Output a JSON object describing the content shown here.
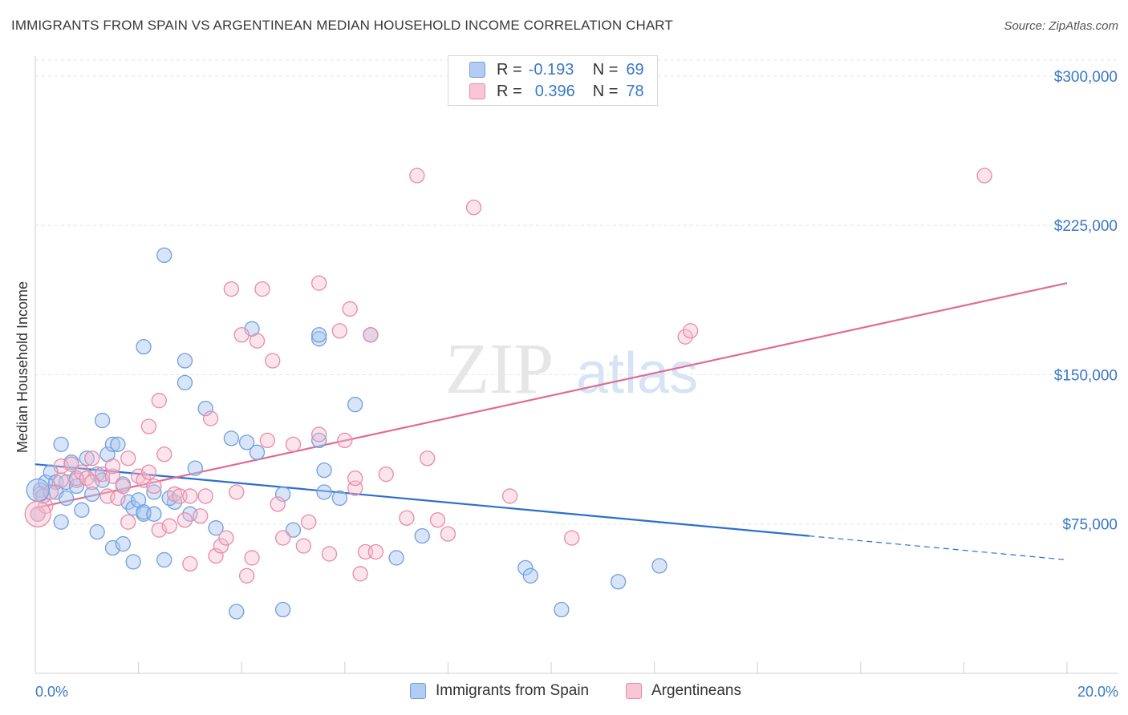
{
  "header": {
    "title": "IMMIGRANTS FROM SPAIN VS ARGENTINEAN MEDIAN HOUSEHOLD INCOME CORRELATION CHART",
    "source": "Source: ZipAtlas.com"
  },
  "watermark": {
    "zip": "ZIP",
    "atlas": "atlas"
  },
  "legend_top": {
    "rows": [
      {
        "r_label": "R =",
        "r_value": "-0.193",
        "n_label": "N =",
        "n_value": "69"
      },
      {
        "r_label": "R =",
        "r_value": "0.396",
        "n_label": "N =",
        "n_value": "78"
      }
    ]
  },
  "colors": {
    "blue": "#6f9fde",
    "blue_fill": "#a9c6f0",
    "blue_line": "#2a6fd0",
    "pink": "#e98aa8",
    "pink_fill": "#f6bccd",
    "pink_line": "#e06b96",
    "axis_label": "#3a78c9",
    "grid": "#e3e3e3"
  },
  "chart_data": {
    "type": "scatter",
    "title": "IMMIGRANTS FROM SPAIN VS ARGENTINEAN MEDIAN HOUSEHOLD INCOME CORRELATION CHART",
    "xlabel": "",
    "ylabel": "Median Household Income",
    "xlim": [
      0,
      20
    ],
    "ylim": [
      0,
      310000
    ],
    "x_tick_labels": [
      "0.0%",
      "20.0%"
    ],
    "y_ticks": [
      75000,
      150000,
      225000,
      300000
    ],
    "y_tick_labels": [
      "$75,000",
      "$150,000",
      "$225,000",
      "$300,000"
    ],
    "grid": true,
    "legend_position": "top-center",
    "series": [
      {
        "name": "Immigrants from Spain",
        "r": -0.193,
        "n": 69,
        "trend": {
          "x0": 0,
          "y0": 105000,
          "x1": 15.0,
          "y1": 69000,
          "dash_to_x": 20.0,
          "dash_to_y": 57000
        },
        "points": [
          [
            0.1,
            92000
          ],
          [
            0.2,
            96000
          ],
          [
            0.3,
            101000
          ],
          [
            0.4,
            96000
          ],
          [
            0.4,
            91000
          ],
          [
            0.5,
            115000
          ],
          [
            0.5,
            76000
          ],
          [
            0.6,
            88000
          ],
          [
            0.6,
            96000
          ],
          [
            0.7,
            106000
          ],
          [
            0.8,
            94000
          ],
          [
            0.8,
            98000
          ],
          [
            0.9,
            82000
          ],
          [
            1.0,
            108000
          ],
          [
            1.1,
            90000
          ],
          [
            1.2,
            71000
          ],
          [
            1.2,
            100000
          ],
          [
            1.3,
            127000
          ],
          [
            1.4,
            110000
          ],
          [
            1.5,
            115000
          ],
          [
            1.5,
            63000
          ],
          [
            1.6,
            115000
          ],
          [
            1.7,
            95000
          ],
          [
            1.7,
            65000
          ],
          [
            1.8,
            86000
          ],
          [
            1.9,
            83000
          ],
          [
            1.9,
            56000
          ],
          [
            2.0,
            87000
          ],
          [
            2.1,
            80000
          ],
          [
            2.1,
            81000
          ],
          [
            2.1,
            164000
          ],
          [
            2.3,
            91000
          ],
          [
            2.3,
            80000
          ],
          [
            2.5,
            57000
          ],
          [
            2.5,
            210000
          ],
          [
            2.7,
            86000
          ],
          [
            2.9,
            157000
          ],
          [
            2.9,
            146000
          ],
          [
            3.0,
            80000
          ],
          [
            3.1,
            103000
          ],
          [
            3.3,
            133000
          ],
          [
            3.5,
            73000
          ],
          [
            3.8,
            118000
          ],
          [
            3.9,
            31000
          ],
          [
            4.1,
            116000
          ],
          [
            4.2,
            173000
          ],
          [
            4.3,
            111000
          ],
          [
            4.8,
            32000
          ],
          [
            4.8,
            90000
          ],
          [
            5.0,
            72000
          ],
          [
            5.5,
            117000
          ],
          [
            5.5,
            168000
          ],
          [
            5.5,
            170000
          ],
          [
            5.6,
            102000
          ],
          [
            5.6,
            91000
          ],
          [
            5.9,
            88000
          ],
          [
            6.2,
            135000
          ],
          [
            6.5,
            170000
          ],
          [
            7.0,
            58000
          ],
          [
            7.5,
            69000
          ],
          [
            9.5,
            53000
          ],
          [
            9.6,
            49000
          ],
          [
            10.2,
            32000
          ],
          [
            11.3,
            46000
          ],
          [
            12.1,
            54000
          ],
          [
            0.05,
            80000
          ],
          [
            0.15,
            89000
          ],
          [
            2.6,
            88000
          ],
          [
            1.3,
            97000
          ]
        ]
      },
      {
        "name": "Argentineans",
        "r": 0.396,
        "n": 78,
        "trend": {
          "x0": 0,
          "y0": 83000,
          "x1": 20.0,
          "y1": 196000
        },
        "points": [
          [
            0.05,
            80000
          ],
          [
            0.1,
            90000
          ],
          [
            0.3,
            91000
          ],
          [
            0.5,
            104000
          ],
          [
            0.5,
            97000
          ],
          [
            0.7,
            105000
          ],
          [
            0.8,
            97000
          ],
          [
            0.9,
            101000
          ],
          [
            1.0,
            98000
          ],
          [
            1.1,
            96000
          ],
          [
            1.1,
            108000
          ],
          [
            1.3,
            100000
          ],
          [
            1.4,
            89000
          ],
          [
            1.5,
            99000
          ],
          [
            1.5,
            104000
          ],
          [
            1.6,
            88000
          ],
          [
            1.7,
            94000
          ],
          [
            1.8,
            76000
          ],
          [
            1.8,
            108000
          ],
          [
            2.0,
            99000
          ],
          [
            2.1,
            97000
          ],
          [
            2.2,
            101000
          ],
          [
            2.2,
            124000
          ],
          [
            2.3,
            94000
          ],
          [
            2.4,
            137000
          ],
          [
            2.4,
            72000
          ],
          [
            2.5,
            110000
          ],
          [
            2.6,
            74000
          ],
          [
            2.7,
            90000
          ],
          [
            2.8,
            89000
          ],
          [
            2.9,
            77000
          ],
          [
            3.0,
            89000
          ],
          [
            3.0,
            55000
          ],
          [
            3.2,
            79000
          ],
          [
            3.3,
            89000
          ],
          [
            3.4,
            128000
          ],
          [
            3.5,
            59000
          ],
          [
            3.6,
            64000
          ],
          [
            3.7,
            68000
          ],
          [
            3.8,
            193000
          ],
          [
            3.9,
            91000
          ],
          [
            4.0,
            170000
          ],
          [
            4.1,
            49000
          ],
          [
            4.2,
            58000
          ],
          [
            4.3,
            167000
          ],
          [
            4.4,
            193000
          ],
          [
            4.5,
            117000
          ],
          [
            4.6,
            157000
          ],
          [
            4.7,
            85000
          ],
          [
            4.8,
            68000
          ],
          [
            5.0,
            115000
          ],
          [
            5.2,
            64000
          ],
          [
            5.3,
            76000
          ],
          [
            5.5,
            120000
          ],
          [
            5.5,
            196000
          ],
          [
            5.7,
            60000
          ],
          [
            5.9,
            172000
          ],
          [
            6.0,
            117000
          ],
          [
            6.1,
            183000
          ],
          [
            6.2,
            93000
          ],
          [
            6.3,
            50000
          ],
          [
            6.4,
            61000
          ],
          [
            6.5,
            170000
          ],
          [
            6.6,
            61000
          ],
          [
            7.2,
            78000
          ],
          [
            7.4,
            250000
          ],
          [
            7.6,
            108000
          ],
          [
            7.8,
            77000
          ],
          [
            8.0,
            70000
          ],
          [
            8.5,
            234000
          ],
          [
            9.2,
            89000
          ],
          [
            10.4,
            68000
          ],
          [
            12.6,
            169000
          ],
          [
            12.7,
            172000
          ],
          [
            18.4,
            250000
          ],
          [
            0.2,
            84000
          ],
          [
            6.8,
            100000
          ],
          [
            6.2,
            98000
          ]
        ]
      }
    ]
  },
  "bottom_legend": {
    "items": [
      {
        "label": "Immigrants from Spain"
      },
      {
        "label": "Argentineans"
      }
    ]
  }
}
